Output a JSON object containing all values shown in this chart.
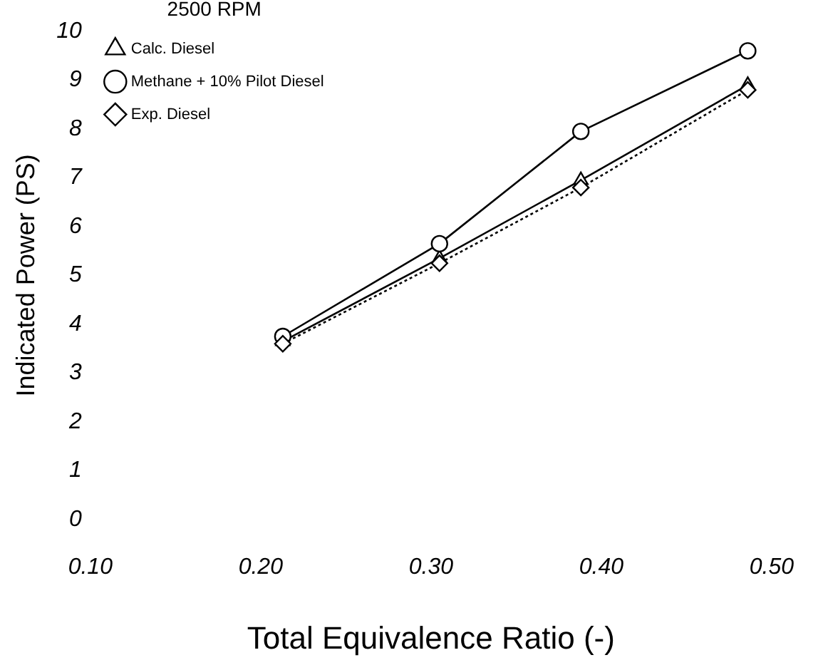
{
  "chart_data": {
    "type": "line",
    "xlabel": "Total Equivalence Ratio (-)",
    "ylabel": "Indicated Power (PS)",
    "legend_title": "2500 RPM",
    "legend": "top left",
    "grid": false,
    "x": [
      0.213,
      0.305,
      0.388,
      0.486
    ],
    "xlim": [
      0.1,
      0.5
    ],
    "xticks": [
      {
        "value": 0.1,
        "label": "0.10"
      },
      {
        "value": 0.2,
        "label": "0.20"
      },
      {
        "value": 0.3,
        "label": "0.30"
      },
      {
        "value": 0.4,
        "label": "0.40"
      },
      {
        "value": 0.5,
        "label": "0.50"
      }
    ],
    "ylim": [
      0,
      10
    ],
    "yticks": [
      0,
      1,
      2,
      3,
      4,
      5,
      6,
      7,
      8,
      9,
      10
    ],
    "series": [
      {
        "name": "Calc. Diesel",
        "color": "#000000",
        "marker": "triangle",
        "line_style": "solid",
        "values": [
          3.65,
          5.35,
          6.95,
          8.9
        ]
      },
      {
        "name": "Methane + 10% Pilot Diesel",
        "color": "#000000",
        "marker": "circle",
        "line_style": "solid",
        "values": [
          3.75,
          5.65,
          7.95,
          9.6
        ]
      },
      {
        "name": "Exp. Diesel",
        "color": "#000000",
        "marker": "diamond",
        "line_style": "dotted",
        "values": [
          3.6,
          5.25,
          6.8,
          8.8
        ]
      }
    ]
  }
}
